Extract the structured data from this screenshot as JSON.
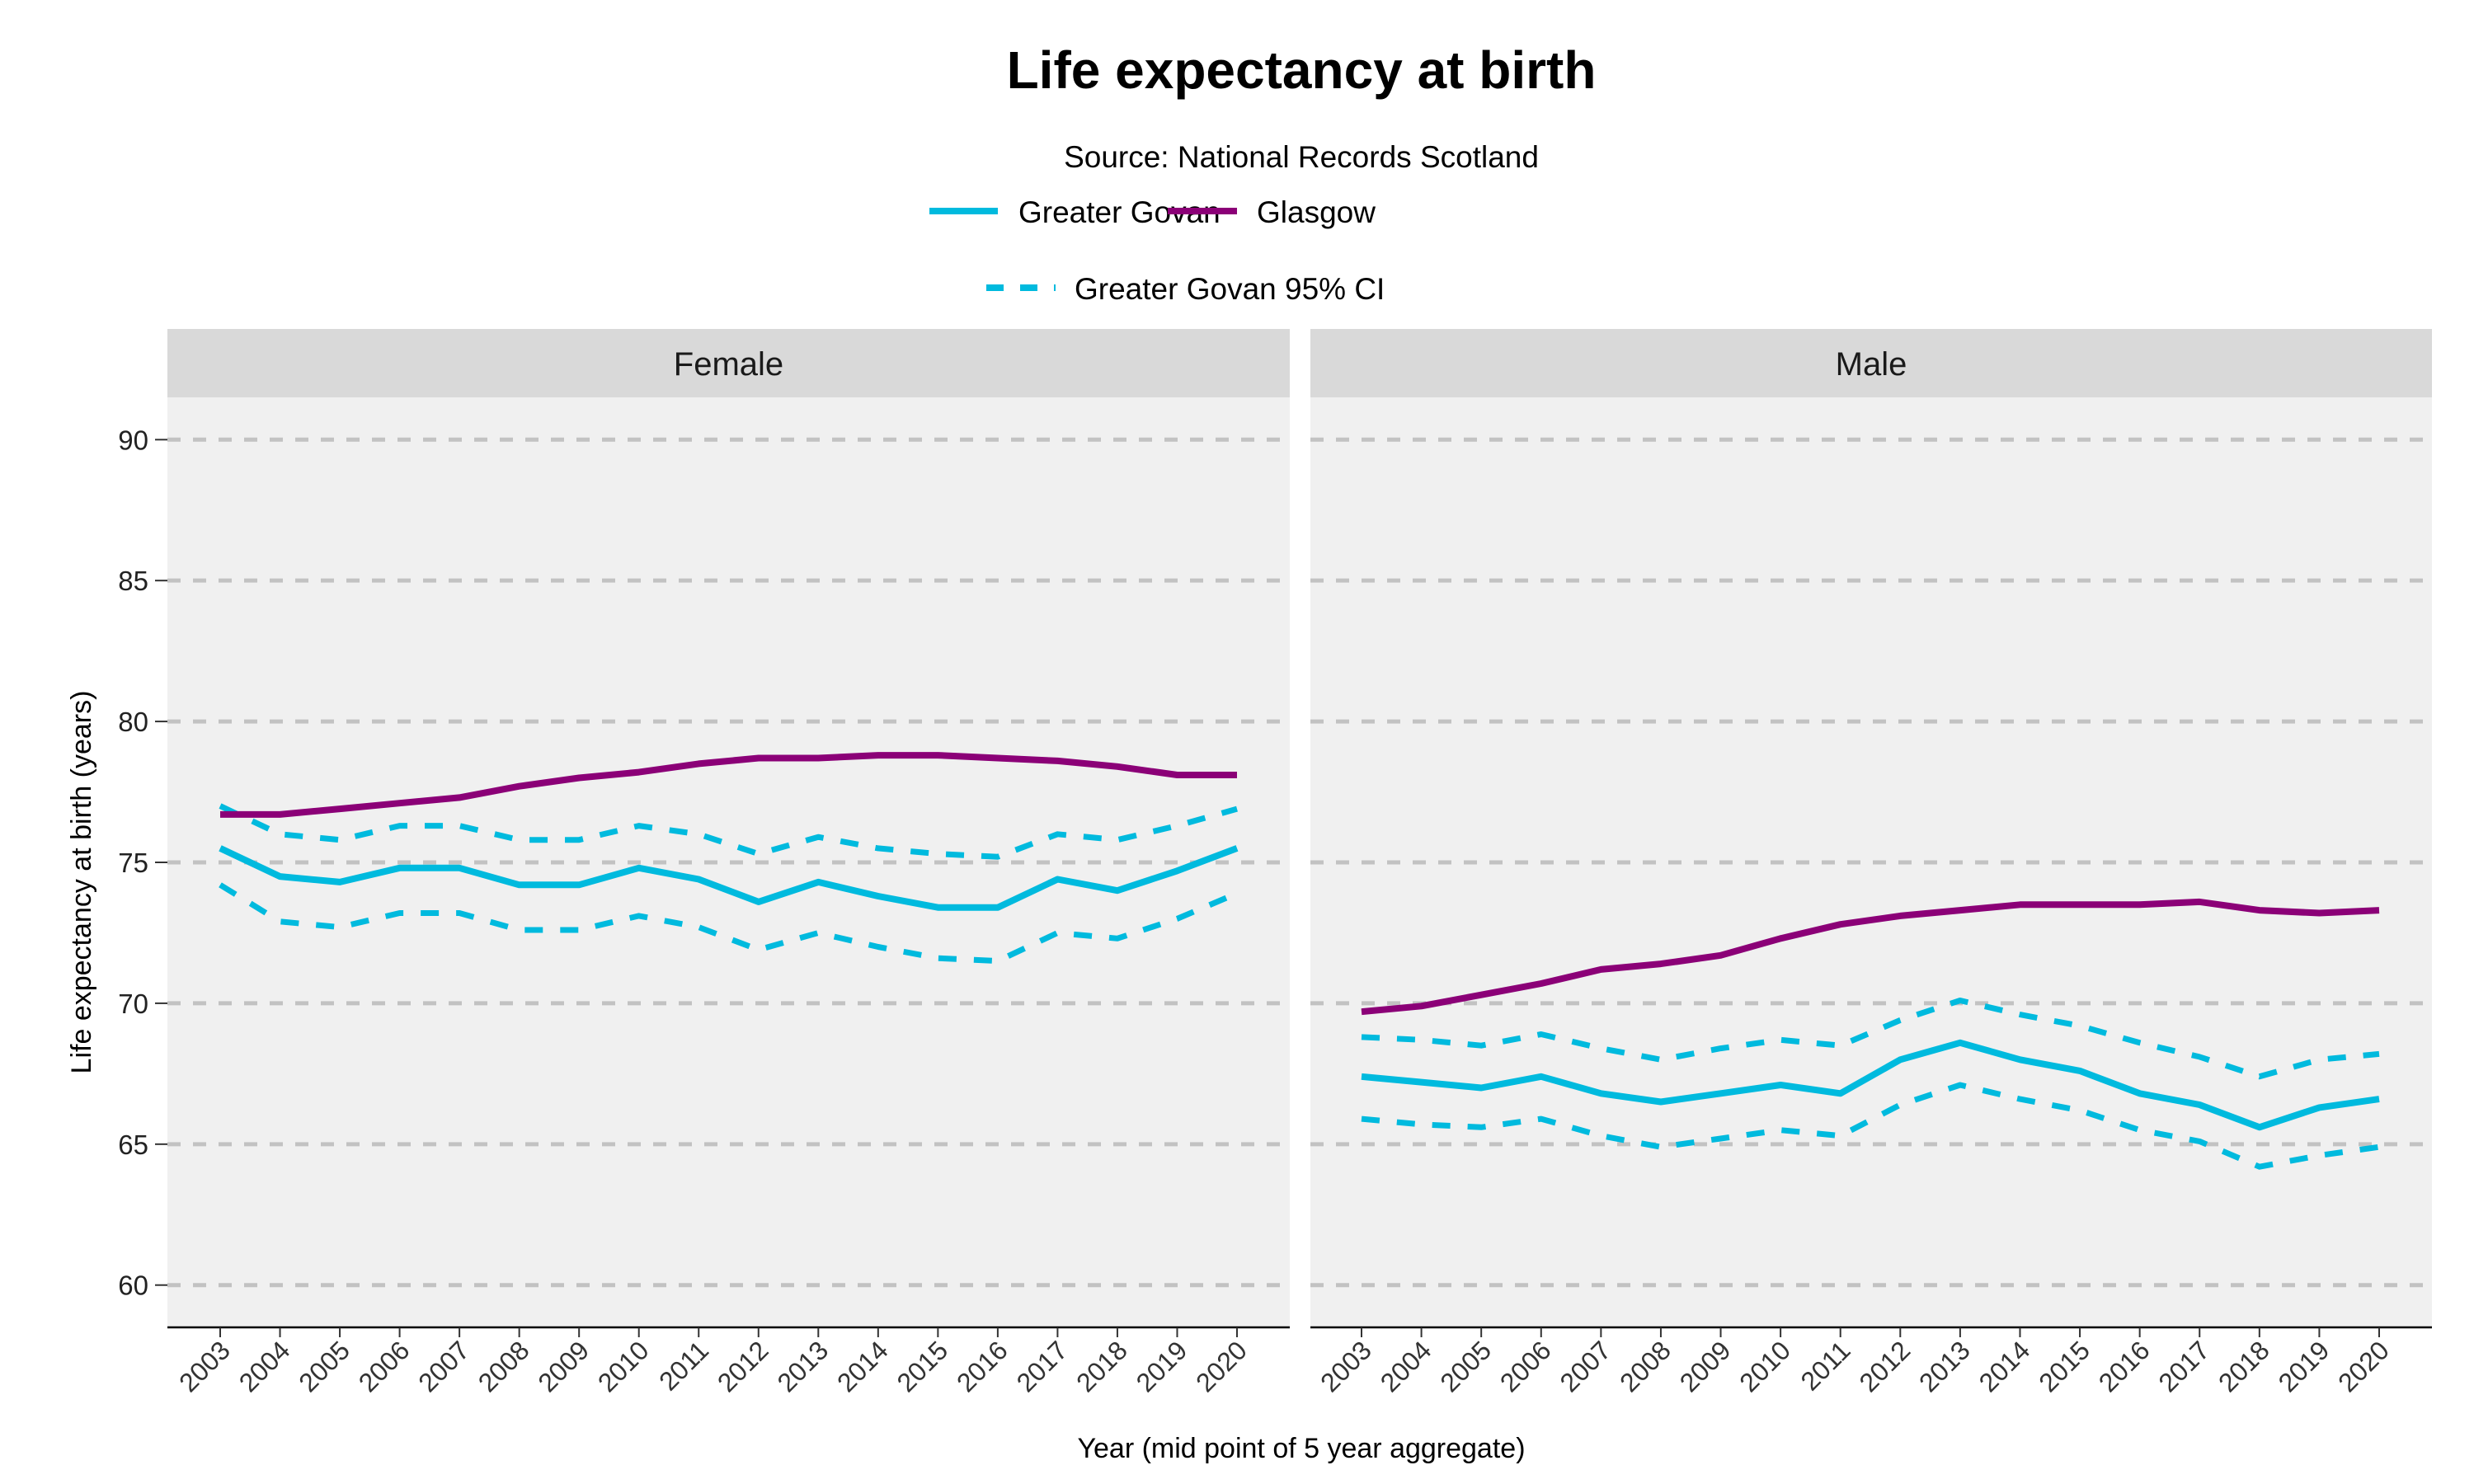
{
  "chart_data": [
    {
      "type": "line",
      "title": "Life expectancy at birth",
      "subtitle": "Source: National Records Scotland",
      "panel": "Female",
      "xlabel": "Year (mid point of 5 year aggregate)",
      "ylabel": "Life expectancy at birth (years)",
      "ylim": [
        58.5,
        91.5
      ],
      "yticks": [
        60,
        65,
        70,
        75,
        80,
        85,
        90
      ],
      "grid": "horizontal dashed",
      "x": [
        "2003",
        "2004",
        "2005",
        "2006",
        "2007",
        "2008",
        "2009",
        "2010",
        "2011",
        "2012",
        "2013",
        "2014",
        "2015",
        "2016",
        "2017",
        "2018",
        "2019",
        "2020"
      ],
      "series": [
        {
          "name": "Greater Govan",
          "style": "solid",
          "color": "#00BADE",
          "values": [
            75.5,
            74.5,
            74.3,
            74.8,
            74.8,
            74.2,
            74.2,
            74.8,
            74.4,
            73.6,
            74.3,
            73.8,
            73.4,
            73.4,
            74.4,
            74.0,
            74.7,
            75.5
          ]
        },
        {
          "name": "Glasgow",
          "style": "solid",
          "color": "#8B0077",
          "values": [
            76.7,
            76.7,
            76.9,
            77.1,
            77.3,
            77.7,
            78.0,
            78.2,
            78.5,
            78.7,
            78.7,
            78.8,
            78.8,
            78.7,
            78.6,
            78.4,
            78.1,
            78.1
          ]
        },
        {
          "name": "Greater Govan 95% CI",
          "style": "dashed",
          "color": "#00BADE",
          "bound": "upper",
          "values": [
            77.0,
            76.0,
            75.8,
            76.3,
            76.3,
            75.8,
            75.8,
            76.3,
            76.0,
            75.3,
            75.9,
            75.5,
            75.3,
            75.2,
            76.0,
            75.8,
            76.3,
            76.9
          ]
        },
        {
          "name": "Greater Govan 95% CI",
          "style": "dashed",
          "color": "#00BADE",
          "bound": "lower",
          "values": [
            74.2,
            72.9,
            72.7,
            73.2,
            73.2,
            72.6,
            72.6,
            73.1,
            72.7,
            71.9,
            72.5,
            72.0,
            71.6,
            71.5,
            72.5,
            72.3,
            73.0,
            73.9
          ]
        }
      ]
    },
    {
      "type": "line",
      "panel": "Male",
      "ylim": [
        58.5,
        91.5
      ],
      "x": [
        "2003",
        "2004",
        "2005",
        "2006",
        "2007",
        "2008",
        "2009",
        "2010",
        "2011",
        "2012",
        "2013",
        "2014",
        "2015",
        "2016",
        "2017",
        "2018",
        "2019",
        "2020"
      ],
      "series": [
        {
          "name": "Greater Govan",
          "style": "solid",
          "color": "#00BADE",
          "values": [
            67.4,
            67.2,
            67.0,
            67.4,
            66.8,
            66.5,
            66.8,
            67.1,
            66.8,
            68.0,
            68.6,
            68.0,
            67.6,
            66.8,
            66.4,
            65.6,
            66.3,
            66.6
          ]
        },
        {
          "name": "Glasgow",
          "style": "solid",
          "color": "#8B0077",
          "values": [
            69.7,
            69.9,
            70.3,
            70.7,
            71.2,
            71.4,
            71.7,
            72.3,
            72.8,
            73.1,
            73.3,
            73.5,
            73.5,
            73.5,
            73.6,
            73.3,
            73.2,
            73.3
          ]
        },
        {
          "name": "Greater Govan 95% CI",
          "style": "dashed",
          "color": "#00BADE",
          "bound": "upper",
          "values": [
            68.8,
            68.7,
            68.5,
            68.9,
            68.4,
            68.0,
            68.4,
            68.7,
            68.5,
            69.4,
            70.1,
            69.6,
            69.2,
            68.6,
            68.1,
            67.4,
            68.0,
            68.2
          ]
        },
        {
          "name": "Greater Govan 95% CI",
          "style": "dashed",
          "color": "#00BADE",
          "bound": "lower",
          "values": [
            65.9,
            65.7,
            65.6,
            65.9,
            65.3,
            64.9,
            65.2,
            65.5,
            65.3,
            66.4,
            67.1,
            66.6,
            66.2,
            65.5,
            65.1,
            64.2,
            64.6,
            64.9
          ]
        }
      ]
    }
  ],
  "legend": {
    "placement": "top",
    "items": [
      {
        "label": "Greater Govan",
        "color": "#00BADE",
        "style": "solid"
      },
      {
        "label": "Glasgow",
        "color": "#8B0077",
        "style": "solid"
      },
      {
        "label": "Greater Govan 95% CI",
        "color": "#00BADE",
        "style": "dashed"
      }
    ]
  }
}
